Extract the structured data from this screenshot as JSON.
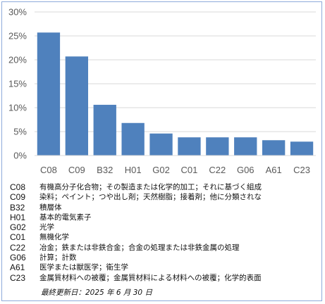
{
  "chart_data": {
    "type": "bar",
    "title": "",
    "xlabel": "",
    "ylabel": "",
    "ylim": [
      0,
      30
    ],
    "yticks": [
      "0%",
      "5%",
      "10%",
      "15%",
      "20%",
      "25%",
      "30%"
    ],
    "grid": true,
    "bar_color": "#4f81bd",
    "categories": [
      "C08",
      "C09",
      "B32",
      "H01",
      "G02",
      "C01",
      "C22",
      "G06",
      "A61",
      "C23"
    ],
    "values": [
      25.7,
      20.7,
      10.6,
      6.8,
      4.6,
      3.8,
      3.8,
      3.8,
      3.2,
      2.9
    ]
  },
  "legend": [
    {
      "code": "C08",
      "desc": "有機高分子化合物；その製造または化学的加工；それに基づく組成"
    },
    {
      "code": "C09",
      "desc": "染料；ペイント；つや出し剤；天然樹脂；接着剤；他に分類されな"
    },
    {
      "code": "B32",
      "desc": "積層体"
    },
    {
      "code": "H01",
      "desc": "基本的電気素子"
    },
    {
      "code": "G02",
      "desc": "光学"
    },
    {
      "code": "C01",
      "desc": "無機化学"
    },
    {
      "code": "C22",
      "desc": "冶金；鉄または非鉄合金；合金の処理または非鉄金属の処理"
    },
    {
      "code": "G06",
      "desc": "計算；計数"
    },
    {
      "code": "A61",
      "desc": "医学または獣医学；衛生学"
    },
    {
      "code": "C23",
      "desc": "金属質材料への被覆；金属質材料による材料への被覆；化学的表面"
    }
  ],
  "footnote": "最終更新日：2025 年 6 月 30 日"
}
